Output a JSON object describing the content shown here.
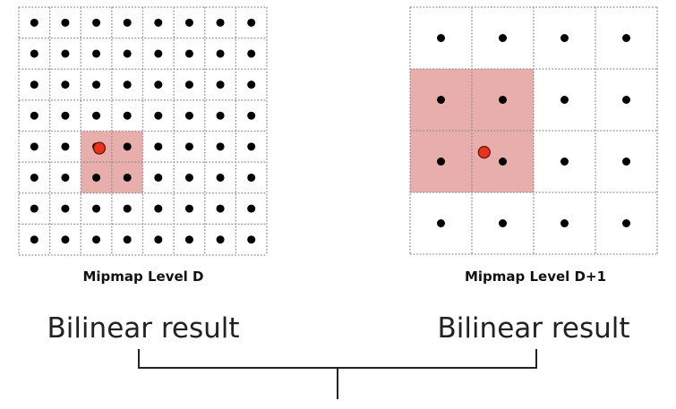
{
  "diagram": {
    "left_grid": {
      "label": "Mipmap Level D",
      "cells": 8,
      "highlight": {
        "col_start": 2,
        "row_start": 4,
        "size": 2
      },
      "sample_point": {
        "col": 2.6,
        "row": 4.55
      }
    },
    "right_grid": {
      "label": "Mipmap Level D+1",
      "cells": 4,
      "highlight": {
        "col_start": 0,
        "row_start": 1,
        "size": 2
      },
      "sample_point": {
        "col": 1.2,
        "row": 2.35
      }
    },
    "results": {
      "left": "Bilinear result",
      "right": "Bilinear result"
    },
    "colors": {
      "highlight": "#e8aeab",
      "dot": "#000000",
      "sample": "#e8321c",
      "grid_line": "#8a8a8a",
      "bracket": "#222222"
    }
  }
}
